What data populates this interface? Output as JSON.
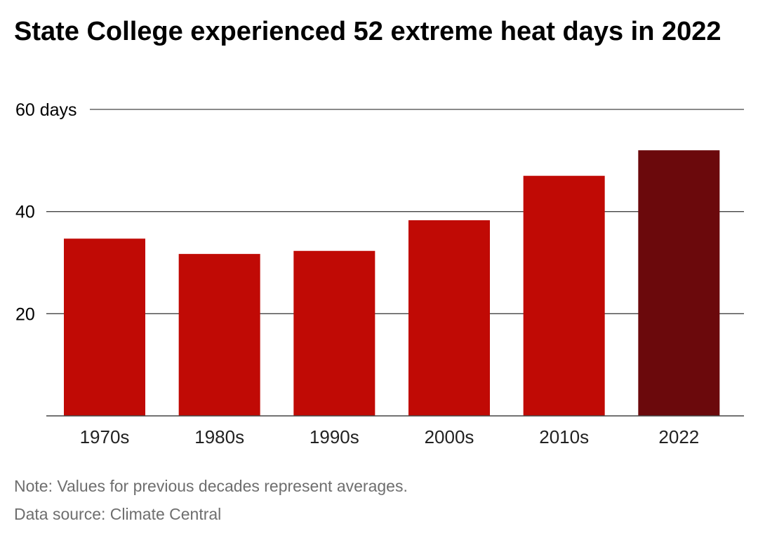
{
  "chart_data": {
    "type": "bar",
    "title": "State College experienced 52 extreme heat days in 2022",
    "categories": [
      "1970s",
      "1980s",
      "1990s",
      "2000s",
      "2010s",
      "2022"
    ],
    "values": [
      34.7,
      31.7,
      32.3,
      38.3,
      47.0,
      52.0
    ],
    "ylim": [
      0,
      60
    ],
    "yticks": [
      {
        "value": 20,
        "label": "20"
      },
      {
        "value": 40,
        "label": "40"
      },
      {
        "value": 60,
        "label": "60 days"
      }
    ],
    "xlabel": "",
    "ylabel": "",
    "grid": true,
    "bar_colors": [
      "#c00a05",
      "#c00a05",
      "#c00a05",
      "#c00a05",
      "#c00a05",
      "#6b090c"
    ]
  },
  "footer": {
    "note": "Note: Values for previous decades represent averages.",
    "source": "Data source: Climate Central"
  }
}
